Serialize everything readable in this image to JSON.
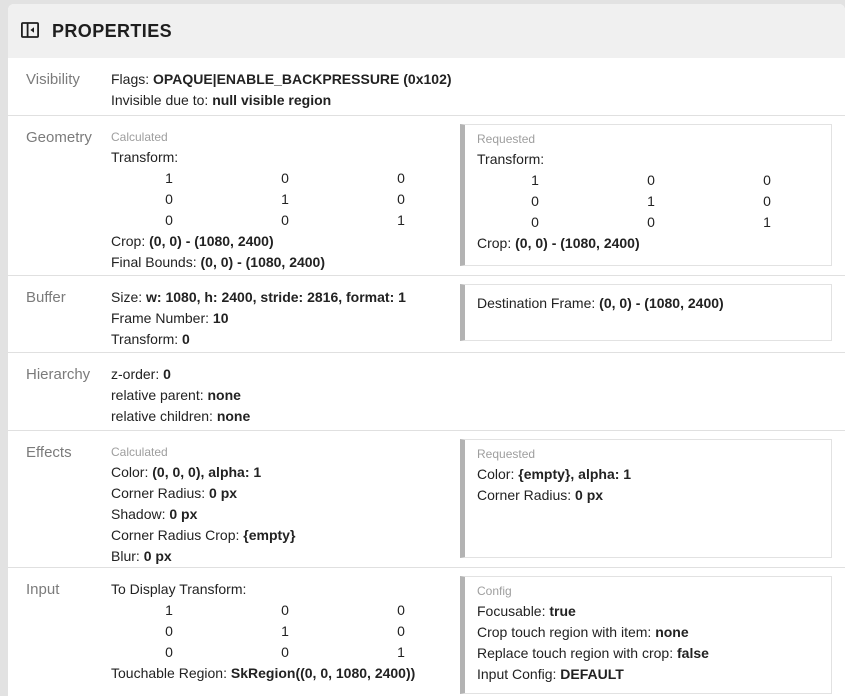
{
  "header": {
    "title": "PROPERTIES",
    "icon": "left-panel-close-icon"
  },
  "colors": {
    "header_bg": "#f0f0f0",
    "page_bg": "#e2e2e2",
    "divider": "#e0e0e0",
    "text": "#222222",
    "section_label": "#7b7b7b",
    "tag_label": "#9e9e9e",
    "box_accent_bar": "#b3b3b3",
    "box_border": "#e2e2e2"
  },
  "sections": [
    {
      "id": "visibility",
      "label": "Visibility",
      "left": {
        "tag": null,
        "rows": [
          {
            "type": "kv",
            "k": "Flags:",
            "v": "OPAQUE|ENABLE_BACKPRESSURE (0x102)"
          },
          {
            "type": "kv",
            "k": "Invisible due to:",
            "v": "null visible region"
          }
        ]
      },
      "right": null
    },
    {
      "id": "geometry",
      "label": "Geometry",
      "left": {
        "tag": "Calculated",
        "rows": [
          {
            "type": "plain",
            "text": "Transform:"
          },
          {
            "type": "matrix",
            "values": [
              [
                "1",
                "0",
                "0"
              ],
              [
                "0",
                "1",
                "0"
              ],
              [
                "0",
                "0",
                "1"
              ]
            ]
          },
          {
            "type": "kv",
            "k": "Crop:",
            "v": "(0, 0) - (1080, 2400)"
          },
          {
            "type": "kv",
            "k": "Final Bounds:",
            "v": "(0, 0) - (1080, 2400)"
          }
        ]
      },
      "right": {
        "tag": "Requested",
        "rows": [
          {
            "type": "plain",
            "text": "Transform:"
          },
          {
            "type": "matrix",
            "values": [
              [
                "1",
                "0",
                "0"
              ],
              [
                "0",
                "1",
                "0"
              ],
              [
                "0",
                "0",
                "1"
              ]
            ]
          },
          {
            "type": "kv",
            "k": "Crop:",
            "v": "(0, 0) - (1080, 2400)"
          }
        ]
      }
    },
    {
      "id": "buffer",
      "label": "Buffer",
      "left": {
        "tag": null,
        "rows": [
          {
            "type": "kv",
            "k": "Size:",
            "v": "w: 1080, h: 2400, stride: 2816, format: 1"
          },
          {
            "type": "kv",
            "k": "Frame Number:",
            "v": "10"
          },
          {
            "type": "kv",
            "k": "Transform:",
            "v": "0"
          }
        ]
      },
      "right": {
        "tag": null,
        "rows": [
          {
            "type": "kv",
            "k": "Destination Frame:",
            "v": "(0, 0) - (1080, 2400)"
          }
        ]
      }
    },
    {
      "id": "hierarchy",
      "label": "Hierarchy",
      "left": {
        "tag": null,
        "rows": [
          {
            "type": "kv",
            "k": "z-order:",
            "v": "0"
          },
          {
            "type": "kv",
            "k": "relative parent:",
            "v": "none"
          },
          {
            "type": "kv",
            "k": "relative children:",
            "v": "none"
          }
        ]
      },
      "right": null
    },
    {
      "id": "effects",
      "label": "Effects",
      "left": {
        "tag": "Calculated",
        "rows": [
          {
            "type": "kv",
            "k": "Color:",
            "v": "(0, 0, 0), alpha: 1"
          },
          {
            "type": "kv",
            "k": "Corner Radius:",
            "v": "0 px"
          },
          {
            "type": "kv",
            "k": "Shadow:",
            "v": "0 px"
          },
          {
            "type": "kv",
            "k": "Corner Radius Crop:",
            "v": "{empty}"
          },
          {
            "type": "kv",
            "k": "Blur:",
            "v": "0 px"
          }
        ]
      },
      "right": {
        "tag": "Requested",
        "rows": [
          {
            "type": "kv",
            "k": "Color:",
            "v": "{empty}, alpha: 1"
          },
          {
            "type": "kv",
            "k": "Corner Radius:",
            "v": "0 px"
          }
        ]
      }
    },
    {
      "id": "input",
      "label": "Input",
      "left": {
        "tag": null,
        "rows": [
          {
            "type": "plain",
            "text": "To Display Transform:"
          },
          {
            "type": "matrix",
            "values": [
              [
                "1",
                "0",
                "0"
              ],
              [
                "0",
                "1",
                "0"
              ],
              [
                "0",
                "0",
                "1"
              ]
            ]
          },
          {
            "type": "kv",
            "k": "Touchable Region:",
            "v": "SkRegion((0, 0, 1080, 2400))"
          }
        ]
      },
      "right": {
        "tag": "Config",
        "rows": [
          {
            "type": "kv",
            "k": "Focusable:",
            "v": "true"
          },
          {
            "type": "kv",
            "k": "Crop touch region with item:",
            "v": "none"
          },
          {
            "type": "kv",
            "k": "Replace touch region with crop:",
            "v": "false"
          },
          {
            "type": "kv",
            "k": "Input Config:",
            "v": "DEFAULT"
          }
        ]
      }
    }
  ]
}
